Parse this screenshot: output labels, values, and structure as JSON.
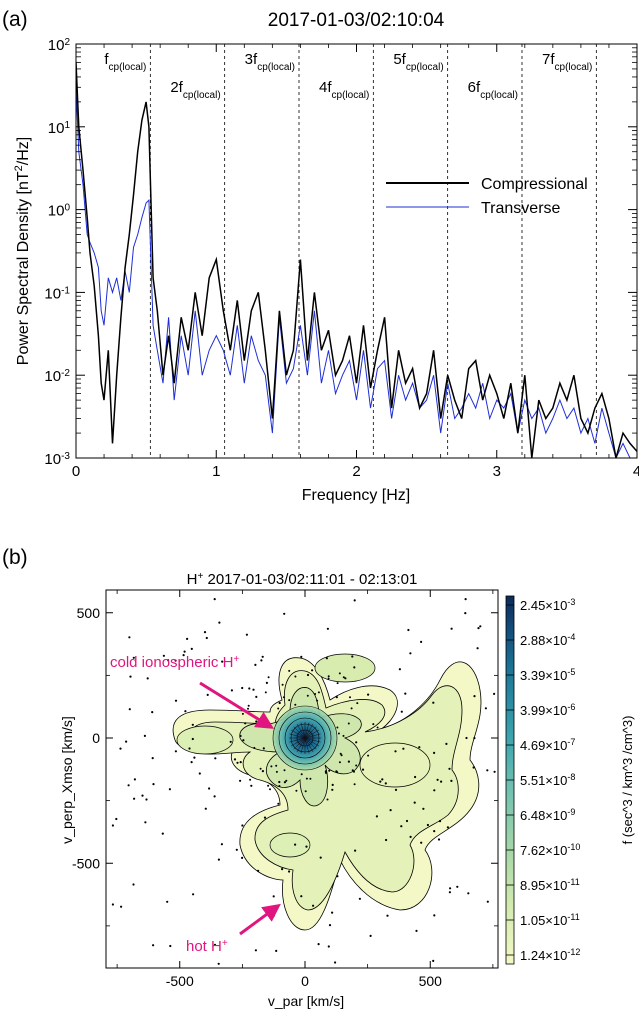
{
  "panel_a": {
    "label": "(a)",
    "title": "2017-01-03/02:10:04",
    "harmonic_labels": [
      {
        "coef": "",
        "main": "f",
        "sub": "cp(local)",
        "freq": 0.53,
        "row": 1
      },
      {
        "coef": "2",
        "main": "f",
        "sub": "cp(local)",
        "freq": 1.06,
        "row": 2
      },
      {
        "coef": "3",
        "main": "f",
        "sub": "cp(local)",
        "freq": 1.59,
        "row": 1
      },
      {
        "coef": "4",
        "main": "f",
        "sub": "cp(local)",
        "freq": 2.12,
        "row": 2
      },
      {
        "coef": "5",
        "main": "f",
        "sub": "cp(local)",
        "freq": 2.65,
        "row": 1
      },
      {
        "coef": "6",
        "main": "f",
        "sub": "cp(local)",
        "freq": 3.18,
        "row": 2
      },
      {
        "coef": "7",
        "main": "f",
        "sub": "cp(local)",
        "freq": 3.71,
        "row": 1
      }
    ]
  },
  "panel_b": {
    "label": "(b)",
    "title_main": "H",
    "title_sup": "+",
    "title_rest": " 2017-01-03/02:11:01 - 02:13:01",
    "annotation_cold": "cold ionospheric H",
    "annotation_cold_sup": "+",
    "annotation_hot": "hot H",
    "annotation_hot_sup": "+",
    "annotation_color": "#e0157f",
    "colorbar_label": "f (sec^3 / km^3 /cm^3)",
    "colorbar_ticks": [
      {
        "mant": "2.45",
        "exp": "-3"
      },
      {
        "mant": "2.88",
        "exp": "-4"
      },
      {
        "mant": "3.39",
        "exp": "-5"
      },
      {
        "mant": "3.99",
        "exp": "-6"
      },
      {
        "mant": "4.69",
        "exp": "-7"
      },
      {
        "mant": "5.51",
        "exp": "-8"
      },
      {
        "mant": "6.48",
        "exp": "-9"
      },
      {
        "mant": "7.62",
        "exp": "-10"
      },
      {
        "mant": "8.95",
        "exp": "-11"
      },
      {
        "mant": "1.05",
        "exp": "-11"
      },
      {
        "mant": "1.24",
        "exp": "-12"
      }
    ],
    "colorbar_colors": [
      "#0b2a5a",
      "#14507e",
      "#1e7b9a",
      "#3aa3ae",
      "#6fc0b0",
      "#a8d8a8",
      "#d4ebb0",
      "#f3f8c6"
    ]
  },
  "chart_data": [
    {
      "type": "line",
      "title": "2017-01-03/02:10:04",
      "xlabel": "Frequency [Hz]",
      "ylabel": "Power Spectral Density [nT²/Hz]",
      "xlim": [
        0,
        4
      ],
      "ylim": [
        0.001,
        100
      ],
      "yscale": "log",
      "xticks": [
        "0",
        "1",
        "2",
        "3",
        "4"
      ],
      "yticks": [
        {
          "base": "10",
          "exp": "-3"
        },
        {
          "base": "10",
          "exp": "-2"
        },
        {
          "base": "10",
          "exp": "-1"
        },
        {
          "base": "10",
          "exp": "0"
        },
        {
          "base": "10",
          "exp": "1"
        },
        {
          "base": "10",
          "exp": "2"
        }
      ],
      "legend_position": "upper-right",
      "grid": false,
      "series": [
        {
          "name": "Compressional",
          "color": "#000000",
          "x": [
            0.0,
            0.02,
            0.05,
            0.08,
            0.1,
            0.13,
            0.16,
            0.18,
            0.2,
            0.23,
            0.26,
            0.29,
            0.32,
            0.35,
            0.38,
            0.41,
            0.44,
            0.47,
            0.5,
            0.52,
            0.55,
            0.58,
            0.62,
            0.66,
            0.7,
            0.75,
            0.8,
            0.85,
            0.9,
            0.95,
            1.0,
            1.05,
            1.1,
            1.15,
            1.2,
            1.25,
            1.3,
            1.35,
            1.4,
            1.45,
            1.5,
            1.55,
            1.6,
            1.65,
            1.7,
            1.75,
            1.8,
            1.85,
            1.9,
            1.95,
            2.0,
            2.05,
            2.1,
            2.15,
            2.2,
            2.25,
            2.3,
            2.35,
            2.4,
            2.45,
            2.5,
            2.55,
            2.6,
            2.65,
            2.7,
            2.75,
            2.8,
            2.85,
            2.9,
            2.95,
            3.0,
            3.05,
            3.1,
            3.15,
            3.2,
            3.25,
            3.3,
            3.35,
            3.4,
            3.45,
            3.5,
            3.55,
            3.6,
            3.65,
            3.7,
            3.75,
            3.8,
            3.85,
            3.9,
            3.95,
            4.0
          ],
          "values": [
            60,
            10,
            3.0,
            0.8,
            0.3,
            0.12,
            0.03,
            0.008,
            0.005,
            0.02,
            0.0015,
            0.01,
            0.05,
            0.2,
            0.5,
            1.5,
            5.0,
            12.0,
            20.0,
            10.0,
            0.15,
            0.06,
            0.01,
            0.03,
            0.008,
            0.05,
            0.02,
            0.1,
            0.03,
            0.15,
            0.25,
            0.06,
            0.02,
            0.08,
            0.015,
            0.06,
            0.1,
            0.02,
            0.003,
            0.06,
            0.01,
            0.02,
            0.25,
            0.015,
            0.1,
            0.02,
            0.035,
            0.01,
            0.015,
            0.03,
            0.008,
            0.04,
            0.007,
            0.02,
            0.05,
            0.004,
            0.02,
            0.008,
            0.012,
            0.004,
            0.006,
            0.02,
            0.003,
            0.01,
            0.005,
            0.003,
            0.012,
            0.015,
            0.005,
            0.01,
            0.006,
            0.003,
            0.008,
            0.002,
            0.01,
            0.001,
            0.005,
            0.003,
            0.004,
            0.008,
            0.005,
            0.01,
            0.003,
            0.002,
            0.004,
            0.006,
            0.003,
            0.001,
            0.002,
            0.0015,
            0.0012
          ]
        },
        {
          "name": "Transverse",
          "color": "#1f2fd6",
          "x": [
            0.0,
            0.02,
            0.05,
            0.08,
            0.1,
            0.13,
            0.16,
            0.18,
            0.2,
            0.23,
            0.26,
            0.29,
            0.32,
            0.35,
            0.38,
            0.41,
            0.44,
            0.47,
            0.5,
            0.52,
            0.55,
            0.58,
            0.62,
            0.66,
            0.7,
            0.75,
            0.8,
            0.85,
            0.9,
            0.95,
            1.0,
            1.05,
            1.1,
            1.15,
            1.2,
            1.25,
            1.3,
            1.35,
            1.4,
            1.45,
            1.5,
            1.55,
            1.6,
            1.65,
            1.7,
            1.75,
            1.8,
            1.85,
            1.9,
            1.95,
            2.0,
            2.05,
            2.1,
            2.15,
            2.2,
            2.25,
            2.3,
            2.35,
            2.4,
            2.45,
            2.5,
            2.55,
            2.6,
            2.65,
            2.7,
            2.75,
            2.8,
            2.85,
            2.9,
            2.95,
            3.0,
            3.05,
            3.1,
            3.15,
            3.2,
            3.25,
            3.3,
            3.35,
            3.4,
            3.45,
            3.5,
            3.55,
            3.6,
            3.65,
            3.7,
            3.75,
            3.8,
            3.85,
            3.9,
            3.95,
            4.0
          ],
          "values": [
            30,
            5.0,
            2.0,
            0.5,
            0.4,
            0.3,
            0.2,
            0.06,
            0.04,
            0.15,
            0.1,
            0.15,
            0.08,
            0.18,
            0.1,
            0.35,
            0.5,
            0.8,
            1.2,
            1.3,
            0.04,
            0.02,
            0.008,
            0.05,
            0.005,
            0.03,
            0.01,
            0.06,
            0.01,
            0.02,
            0.03,
            0.02,
            0.01,
            0.04,
            0.008,
            0.03,
            0.015,
            0.01,
            0.002,
            0.05,
            0.008,
            0.012,
            0.04,
            0.01,
            0.06,
            0.008,
            0.02,
            0.006,
            0.01,
            0.015,
            0.005,
            0.02,
            0.004,
            0.012,
            0.015,
            0.003,
            0.01,
            0.005,
            0.008,
            0.004,
            0.005,
            0.01,
            0.002,
            0.008,
            0.003,
            0.004,
            0.006,
            0.004,
            0.008,
            0.003,
            0.005,
            0.004,
            0.006,
            0.002,
            0.005,
            0.003,
            0.004,
            0.002,
            0.003,
            0.005,
            0.003,
            0.004,
            0.002,
            0.003,
            0.0015,
            0.004,
            0.002,
            0.001,
            0.0015,
            0.001,
            0.001
          ]
        }
      ]
    },
    {
      "type": "heatmap",
      "title": "H+ 2017-01-03/02:11:01 - 02:13:01",
      "xlabel": "v_par [km/s]",
      "ylabel": "v_perp_Xmso [km/s]",
      "xlim": [
        -800,
        800
      ],
      "ylim": [
        -800,
        800
      ],
      "xticks": [
        "-500",
        "0",
        "500"
      ],
      "yticks": [
        "-500",
        "0",
        "500"
      ],
      "colorbar_label": "f (sec^3 / km^3 /cm^3)",
      "features": [
        {
          "name": "cold ionospheric H+",
          "vx": -30,
          "vy": 30
        },
        {
          "name": "hot H+",
          "vx": -100,
          "vy": -450
        }
      ]
    }
  ]
}
